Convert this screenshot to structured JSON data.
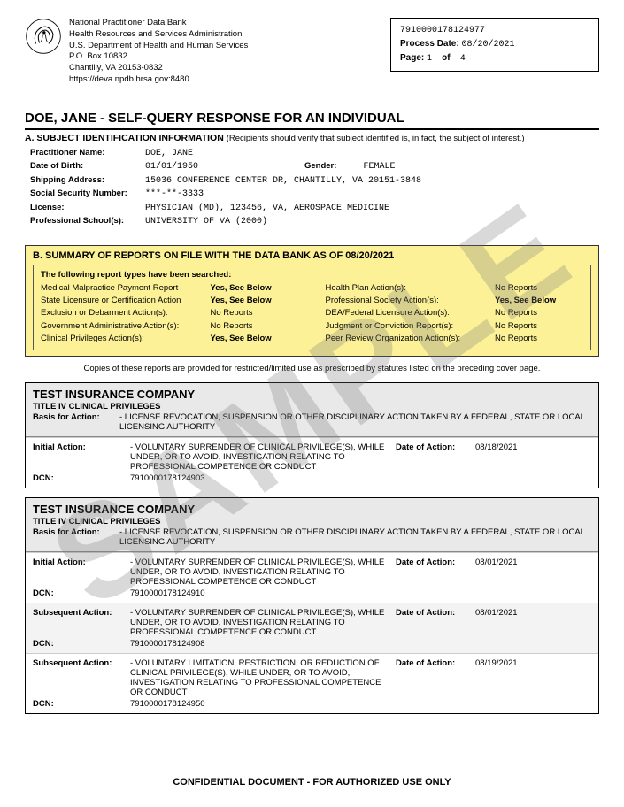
{
  "watermark": "SAMPLE",
  "header": {
    "org_lines": [
      "National Practitioner Data Bank",
      "Health Resources and Services Administration",
      "U.S. Department of Health and Human Services",
      "P.O. Box 10832",
      "Chantilly, VA 20153-0832",
      "https://deva.npdb.hrsa.gov:8480"
    ],
    "stamp": {
      "id": "7910000178124977",
      "process_date_label": "Process Date:",
      "process_date": "08/20/2021",
      "page_label": "Page:",
      "page_num": "1",
      "of_label": "of",
      "page_total": "4"
    }
  },
  "title": "DOE, JANE - SELF-QUERY RESPONSE FOR AN INDIVIDUAL",
  "section_a": {
    "heading": "A. SUBJECT IDENTIFICATION INFORMATION",
    "paren": "(Recipients should verify that subject identified is, in fact, the subject of interest.)",
    "rows": {
      "practitioner_name_label": "Practitioner Name:",
      "practitioner_name": "DOE, JANE",
      "dob_label": "Date of Birth:",
      "dob": "01/01/1950",
      "gender_label": "Gender:",
      "gender": "FEMALE",
      "shipping_label": "Shipping Address:",
      "shipping": "15036 CONFERENCE CENTER DR, CHANTILLY, VA 20151-3848",
      "ssn_label": "Social Security Number:",
      "ssn": "***-**-3333",
      "license_label": "License:",
      "license": "PHYSICIAN (MD), 123456, VA, AEROSPACE MEDICINE",
      "school_label": "Professional School(s):",
      "school": "UNIVERSITY OF VA (2000)"
    }
  },
  "section_b": {
    "heading": "B. SUMMARY OF REPORTS ON FILE WITH THE DATA BANK AS OF 08/20/2021",
    "intro": "The following report types have been searched:",
    "left": [
      {
        "name": "Medical Malpractice Payment Report",
        "val": "Yes, See Below",
        "bold": true
      },
      {
        "name": "State Licensure or Certification Action",
        "val": "Yes, See Below",
        "bold": true
      },
      {
        "name": "Exclusion or Debarment Action(s):",
        "val": "No Reports",
        "bold": false
      },
      {
        "name": "Government Administrative Action(s):",
        "val": "No Reports",
        "bold": false
      },
      {
        "name": "Clinical Privileges Action(s):",
        "val": "Yes, See Below",
        "bold": true
      }
    ],
    "right": [
      {
        "name": "Health Plan Action(s):",
        "val": "No Reports",
        "bold": false
      },
      {
        "name": "Professional Society Action(s):",
        "val": "Yes, See Below",
        "bold": true
      },
      {
        "name": "DEA/Federal Licensure Action(s):",
        "val": "No Reports",
        "bold": false
      },
      {
        "name": "Judgment or Conviction Report(s):",
        "val": "No Reports",
        "bold": false
      },
      {
        "name": "Peer Review Organization Action(s):",
        "val": "No Reports",
        "bold": false
      }
    ],
    "bg_color": "#fcf196"
  },
  "copies_note": "Copies of these reports are provided for restricted/limited use as prescribed by statutes listed on the preceding cover page.",
  "reports": [
    {
      "company": "TEST INSURANCE COMPANY",
      "subtitle": "TITLE IV CLINICAL PRIVILEGES",
      "basis_label": "Basis for Action:",
      "basis": "- LICENSE REVOCATION, SUSPENSION OR OTHER DISCIPLINARY ACTION TAKEN BY A FEDERAL, STATE OR LOCAL LICENSING AUTHORITY",
      "actions": [
        {
          "label": "Initial Action:",
          "desc": "- VOLUNTARY SURRENDER OF CLINICAL PRIVILEGE(S), WHILE UNDER, OR TO AVOID, INVESTIGATION RELATING TO PROFESSIONAL COMPETENCE OR CONDUCT",
          "doa_label": "Date of Action:",
          "doa": "08/18/2021",
          "dcn_label": "DCN:",
          "dcn": "7910000178124903",
          "alt": false
        }
      ]
    },
    {
      "company": "TEST INSURANCE COMPANY",
      "subtitle": "TITLE IV CLINICAL PRIVILEGES",
      "basis_label": "Basis for Action:",
      "basis": "- LICENSE REVOCATION, SUSPENSION OR OTHER DISCIPLINARY ACTION TAKEN BY A FEDERAL, STATE OR LOCAL LICENSING AUTHORITY",
      "actions": [
        {
          "label": "Initial Action:",
          "desc": "- VOLUNTARY SURRENDER OF CLINICAL PRIVILEGE(S), WHILE UNDER, OR TO AVOID, INVESTIGATION RELATING TO PROFESSIONAL COMPETENCE OR CONDUCT",
          "doa_label": "Date of Action:",
          "doa": "08/01/2021",
          "dcn_label": "DCN:",
          "dcn": "7910000178124910",
          "alt": false
        },
        {
          "label": "Subsequent Action:",
          "desc": "- VOLUNTARY SURRENDER OF CLINICAL PRIVILEGE(S), WHILE UNDER, OR TO AVOID, INVESTIGATION RELATING TO PROFESSIONAL COMPETENCE OR CONDUCT",
          "doa_label": "Date of Action:",
          "doa": "08/01/2021",
          "dcn_label": "DCN:",
          "dcn": "7910000178124908",
          "alt": true
        },
        {
          "label": "Subsequent Action:",
          "desc": "- VOLUNTARY LIMITATION, RESTRICTION, OR REDUCTION OF CLINICAL PRIVILEGE(S), WHILE UNDER, OR TO AVOID, INVESTIGATION RELATING TO PROFESSIONAL COMPETENCE OR CONDUCT",
          "doa_label": "Date of Action:",
          "doa": "08/19/2021",
          "dcn_label": "DCN:",
          "dcn": "7910000178124950",
          "alt": false
        }
      ]
    }
  ],
  "footer": "CONFIDENTIAL DOCUMENT - FOR AUTHORIZED USE ONLY"
}
